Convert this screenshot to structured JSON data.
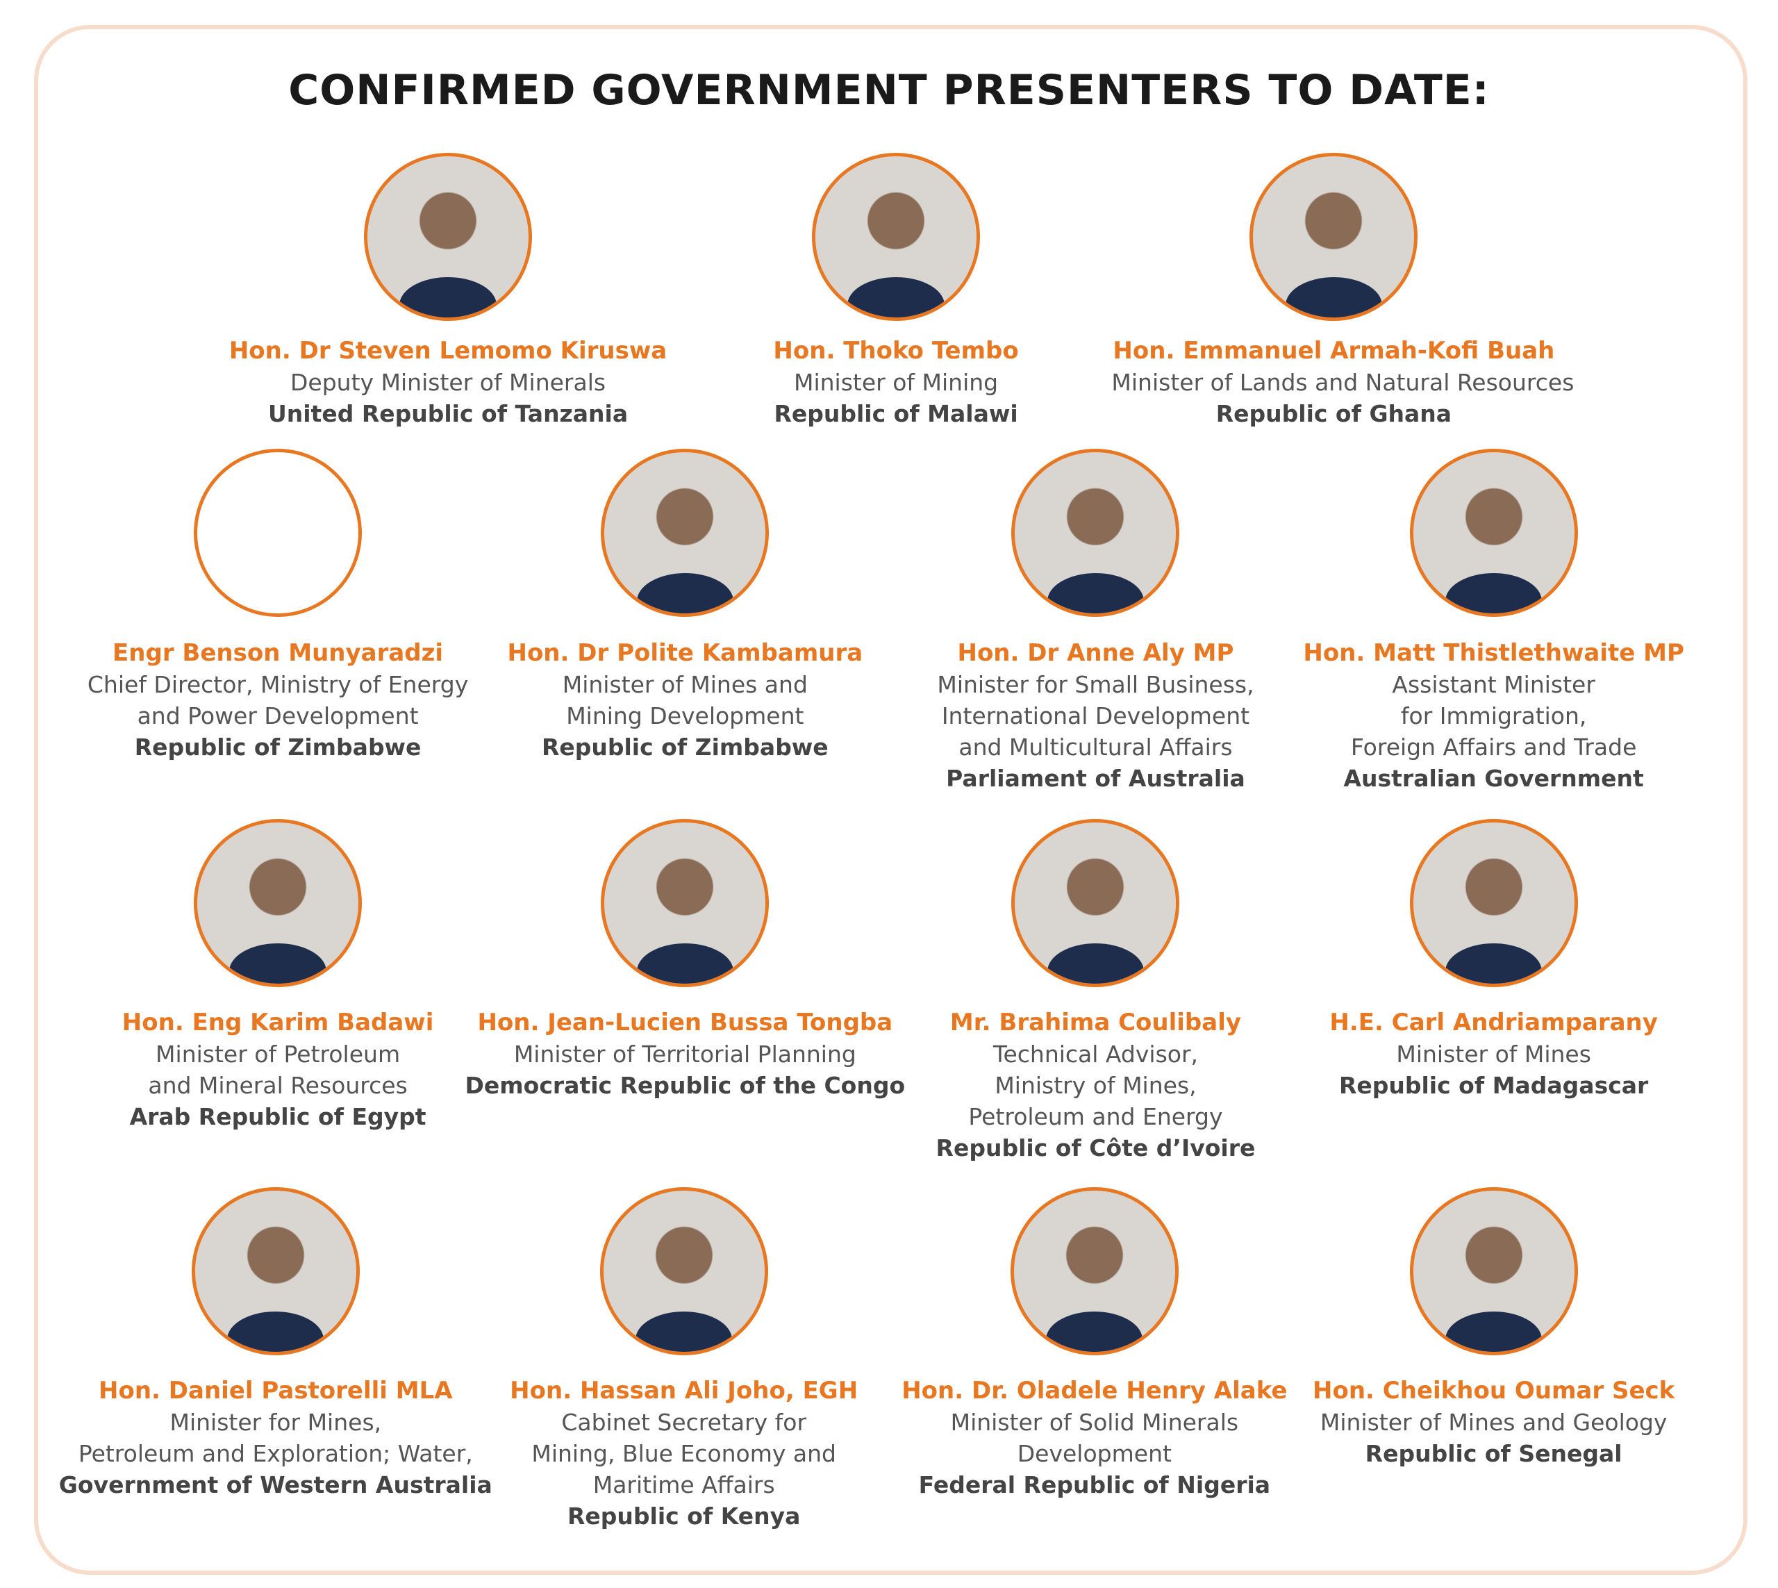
{
  "header": {
    "title": "CONFIRMED GOVERNMENT PRESENTERS TO DATE:"
  },
  "presenters": [
    {
      "name": "Hon. Dr Steven Lemomo Kiruswa",
      "role": [
        "Deputy Minister of Minerals"
      ],
      "country": "United Republic of Tanzania"
    },
    {
      "name": "Hon. Thoko Tembo",
      "role": [
        "Minister of Mining"
      ],
      "country": "Republic of Malawi"
    },
    {
      "name": "Hon. Emmanuel Armah-Kofi Buah",
      "role": [
        "Minister of Lands and Natural Resources"
      ],
      "country": "Republic of Ghana"
    },
    {
      "name": "Engr Benson Munyaradzi",
      "role": [
        "Chief Director, Ministry of Energy",
        "and Power Development"
      ],
      "country": "Republic of Zimbabwe"
    },
    {
      "name": "Hon. Dr Polite Kambamura",
      "role": [
        "Minister of Mines and",
        "Mining Development"
      ],
      "country": "Republic of Zimbabwe"
    },
    {
      "name": "Hon. Dr Anne Aly MP",
      "role": [
        "Minister for Small Business,",
        "International Development",
        "and Multicultural Affairs"
      ],
      "country": "Parliament of Australia"
    },
    {
      "name": "Hon. Matt Thistlethwaite MP",
      "role": [
        "Assistant Minister",
        "for Immigration,",
        "Foreign Affairs and Trade"
      ],
      "country": "Australian Government"
    },
    {
      "name": "Hon. Eng Karim Badawi",
      "role": [
        "Minister of Petroleum",
        "and Mineral Resources"
      ],
      "country": "Arab Republic of Egypt"
    },
    {
      "name": "Hon. Jean-Lucien Bussa Tongba",
      "role": [
        "Minister of Territorial Planning"
      ],
      "country": "Democratic Republic of the Congo"
    },
    {
      "name": "Mr. Brahima Coulibaly",
      "role": [
        "Technical Advisor,",
        "Ministry of Mines,",
        "Petroleum and Energy"
      ],
      "country": "Republic of Côte d’Ivoire"
    },
    {
      "name": "H.E. Carl Andriamparany",
      "role": [
        "Minister of Mines"
      ],
      "country": "Republic of Madagascar"
    },
    {
      "name": "Hon. Daniel Pastorelli MLA",
      "role": [
        "Minister for Mines,",
        "Petroleum and Exploration; Water,"
      ],
      "country": "Government of Western Australia"
    },
    {
      "name": "Hon. Hassan Ali Joho, EGH",
      "role": [
        "Cabinet Secretary for",
        "Mining, Blue Economy and",
        "Maritime Affairs"
      ],
      "country": "Republic of Kenya"
    },
    {
      "name": "Hon. Dr. Oladele Henry Alake",
      "role": [
        "Minister of Solid Minerals",
        "Development"
      ],
      "country": "Federal Republic of Nigeria"
    },
    {
      "name": "Hon. Cheikhou Oumar Seck",
      "role": [
        "Minister of Mines and Geology"
      ],
      "country": "Republic of Senegal"
    }
  ]
}
